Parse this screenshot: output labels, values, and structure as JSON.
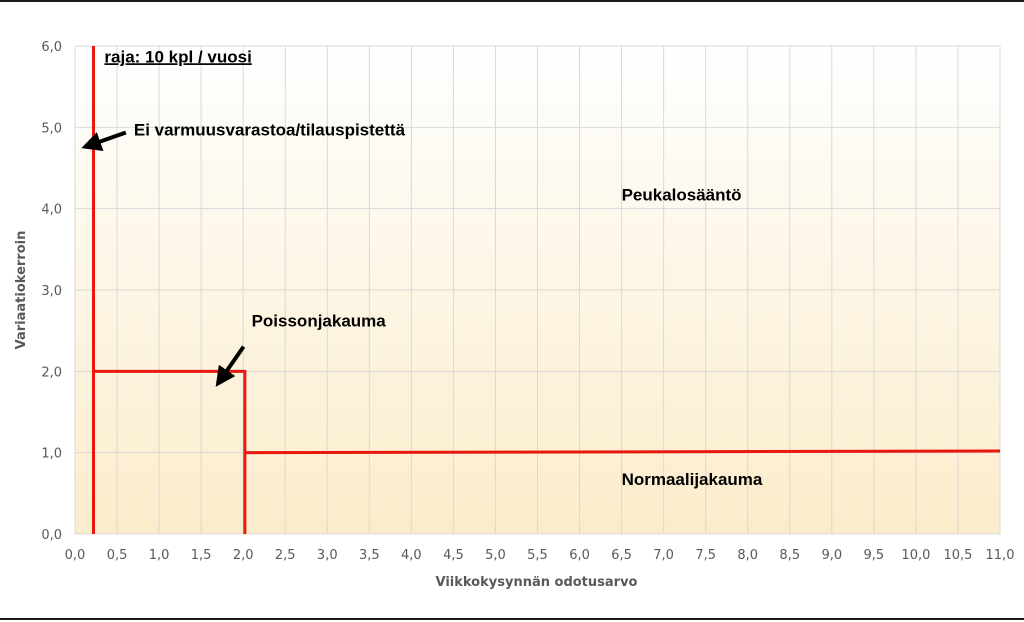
{
  "chart_data": {
    "type": "line",
    "title": "",
    "xlabel": "Viikkokysynnän odotusarvo",
    "ylabel": "Variaatiokerroin",
    "xlim": [
      0,
      11
    ],
    "ylim": [
      0,
      6
    ],
    "xticks": [
      "0,0",
      "0,5",
      "1,0",
      "1,5",
      "2,0",
      "2,5",
      "3,0",
      "3,5",
      "4,0",
      "4,5",
      "5,0",
      "5,5",
      "6,0",
      "6,5",
      "7,0",
      "7,5",
      "8,0",
      "8,5",
      "9,0",
      "9,5",
      "10,0",
      "10,5",
      "11,0"
    ],
    "yticks": [
      "0,0",
      "1,0",
      "2,0",
      "3,0",
      "4,0",
      "5,0",
      "6,0"
    ],
    "grid": true,
    "series": [
      {
        "x": [
          0.22,
          0.22
        ],
        "y": [
          0,
          6
        ]
      },
      {
        "x": [
          0.22,
          2.02,
          2.02
        ],
        "y": [
          2.0,
          2.0,
          0
        ]
      },
      {
        "x": [
          2.02,
          11.0
        ],
        "y": [
          1.0,
          1.02
        ]
      }
    ],
    "line_color": "#e8180f",
    "background_gradient": [
      "#fdf6ea",
      "#fbeccb"
    ],
    "annotations": [
      {
        "text": "raja: 10 kpl / vuosi",
        "x": 0.35,
        "y": 5.8,
        "underline": true
      },
      {
        "text": "Ei varmuusvarastoa/tilauspistettä",
        "x": 0.7,
        "y": 4.9,
        "arrow_to": [
          0.12,
          4.76
        ]
      },
      {
        "text": "Peukalosääntö",
        "x": 6.5,
        "y": 4.1
      },
      {
        "text": "Poissonjakauma",
        "x": 2.1,
        "y": 2.55,
        "arrow_to": [
          1.7,
          1.85
        ]
      },
      {
        "text": "Normaalijakauma",
        "x": 6.5,
        "y": 0.6
      }
    ]
  }
}
